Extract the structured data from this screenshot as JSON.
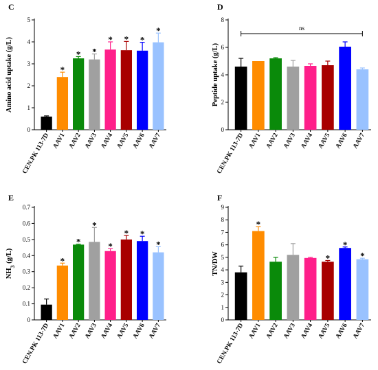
{
  "chart_data": [
    {
      "panel": "C",
      "type": "bar",
      "title": "",
      "xlabel": "",
      "ylabel": "Amino acid uptake (g/L)",
      "categories": [
        "CEN.PK 113-7D",
        "AAV1",
        "AAV2",
        "AAV3",
        "AAV4",
        "AAV5",
        "AAV6",
        "AAV7"
      ],
      "values": [
        0.6,
        2.4,
        3.25,
        3.2,
        3.65,
        3.62,
        3.6,
        3.98
      ],
      "errors": [
        0.03,
        0.22,
        0.08,
        0.25,
        0.35,
        0.4,
        0.38,
        0.42
      ],
      "significance": [
        "",
        "*",
        "*",
        "*",
        "*",
        "*",
        "*",
        "*"
      ],
      "colors": [
        "#000000",
        "#ff8c00",
        "#0a8a0a",
        "#a0a0a0",
        "#ff1f8a",
        "#a80000",
        "#0000ff",
        "#99c2ff"
      ],
      "ylim": [
        0,
        5
      ],
      "yticks": [
        "0",
        "1",
        "2",
        "3",
        "4",
        "5"
      ]
    },
    {
      "panel": "D",
      "type": "bar",
      "title": "",
      "xlabel": "",
      "ylabel": "Peptide uptake (g/L)",
      "categories": [
        "CEN.PK 113-7D",
        "AAV1",
        "AAV2",
        "AAV3",
        "AAV4",
        "AAV5",
        "AAV6",
        "AAV7"
      ],
      "values": [
        4.6,
        5.0,
        5.2,
        4.6,
        4.65,
        4.7,
        6.05,
        4.4
      ],
      "errors": [
        0.6,
        0.0,
        0.05,
        0.45,
        0.15,
        0.3,
        0.35,
        0.1
      ],
      "significance": [
        "",
        "",
        "",
        "",
        "",
        "",
        "",
        ""
      ],
      "bracket_label": "ns",
      "colors": [
        "#000000",
        "#ff8c00",
        "#0a8a0a",
        "#a0a0a0",
        "#ff1f8a",
        "#a80000",
        "#0000ff",
        "#99c2ff"
      ],
      "ylim": [
        0,
        8
      ],
      "yticks": [
        "0",
        "2",
        "4",
        "6",
        "8"
      ]
    },
    {
      "panel": "E",
      "type": "bar",
      "title": "",
      "xlabel": "",
      "ylabel": "NH3 (g/L)",
      "categories": [
        "CEN.PK 113-7D",
        "AAV1",
        "AAV2",
        "AAV3",
        "AAV4",
        "AAV5",
        "AAV6",
        "AAV7"
      ],
      "values": [
        0.095,
        0.338,
        0.468,
        0.485,
        0.428,
        0.5,
        0.49,
        0.42
      ],
      "errors": [
        0.035,
        0.015,
        0.003,
        0.09,
        0.015,
        0.025,
        0.03,
        0.035
      ],
      "significance": [
        "",
        "*",
        "*",
        "*",
        "*",
        "*",
        "*",
        "*"
      ],
      "colors": [
        "#000000",
        "#ff8c00",
        "#0a8a0a",
        "#a0a0a0",
        "#ff1f8a",
        "#a80000",
        "#0000ff",
        "#99c2ff"
      ],
      "ylim": [
        0,
        0.7
      ],
      "yticks": [
        "0",
        "0.1",
        "0.2",
        "0.3",
        "0.4",
        "0.5",
        "0.6",
        "0.7"
      ]
    },
    {
      "panel": "F",
      "type": "bar",
      "title": "",
      "xlabel": "",
      "ylabel": "TN/DW",
      "categories": [
        "CEN.PK 113-7D",
        "AAV1",
        "AAV2",
        "AAV3",
        "AAV4",
        "AAV5",
        "AAV6",
        "AAV7"
      ],
      "values": [
        3.8,
        7.1,
        4.65,
        5.2,
        4.95,
        4.65,
        5.75,
        4.85
      ],
      "errors": [
        0.5,
        0.35,
        0.35,
        0.9,
        0.05,
        0.1,
        0.08,
        0.08
      ],
      "significance": [
        "",
        "*",
        "",
        "",
        "",
        "*",
        "*",
        "*"
      ],
      "colors": [
        "#000000",
        "#ff8c00",
        "#0a8a0a",
        "#a0a0a0",
        "#ff1f8a",
        "#a80000",
        "#0000ff",
        "#99c2ff"
      ],
      "ylim": [
        0,
        9
      ],
      "yticks": [
        "0",
        "1",
        "2",
        "3",
        "4",
        "5",
        "6",
        "7",
        "8",
        "9"
      ]
    }
  ]
}
